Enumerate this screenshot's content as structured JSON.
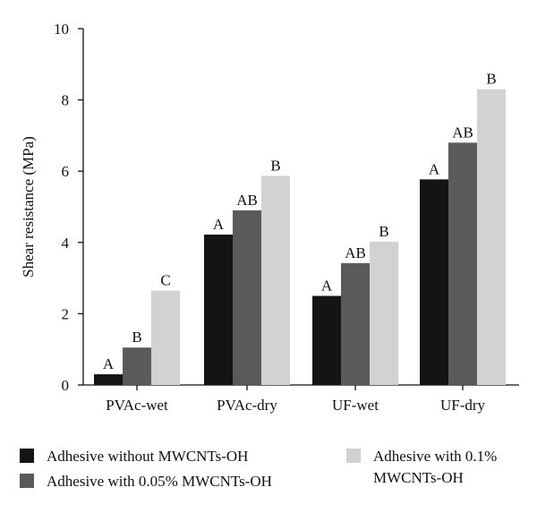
{
  "chart_data": {
    "type": "bar",
    "categories": [
      "PVAc-wet",
      "PVAc-dry",
      "UF-wet",
      "UF-dry"
    ],
    "ylabel": "Shear resistance (MPa)",
    "xlabel": "",
    "ylim": [
      0,
      10
    ],
    "yticks": [
      "0",
      "2",
      "4",
      "6",
      "8",
      "10"
    ],
    "grid": false,
    "legend_position": "bottom",
    "series": [
      {
        "name": "Adhesive without MWCNTs-OH",
        "color": "#141414",
        "values": [
          0.3,
          4.22,
          2.5,
          5.77
        ],
        "labels": [
          "A",
          "A",
          "A",
          "A"
        ]
      },
      {
        "name": "Adhesive with 0.05% MWCNTs-OH",
        "color": "#5a5a5a",
        "values": [
          1.05,
          4.9,
          3.42,
          6.8
        ],
        "labels": [
          "B",
          "AB",
          "AB",
          "AB"
        ]
      },
      {
        "name": "Adhesive with 0.1% MWCNTs-OH",
        "name_lines": [
          "Adhesive with 0.1%",
          "MWCNTs-OH"
        ],
        "color": "#d2d2d2",
        "values": [
          2.65,
          5.87,
          4.02,
          8.3
        ],
        "labels": [
          "C",
          "B",
          "B",
          "B"
        ]
      }
    ]
  }
}
